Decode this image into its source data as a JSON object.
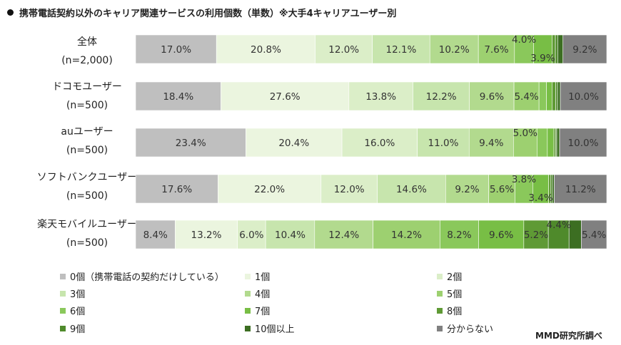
{
  "chart_data": {
    "type": "bar",
    "orientation": "horizontal",
    "stacked": true,
    "title": "携帯電話契約以外のキャリア関連サービスの利用個数（単数）※大手4キャリアユーザー別",
    "source": "MMD研究所調べ",
    "categories": [
      {
        "line1": "全体",
        "line2": "(n=2,000)"
      },
      {
        "line1": "ドコモユーザー",
        "line2": "(n=500)"
      },
      {
        "line1": "auユーザー",
        "line2": "(n=500)"
      },
      {
        "line1": "ソフトバンクユーザー",
        "line2": "(n=500)"
      },
      {
        "line1": "楽天モバイルユーザー",
        "line2": "(n=500)"
      }
    ],
    "series": [
      {
        "name": "0個（携帯電話の契約だけしている）",
        "color": "#bfbfbf",
        "values": [
          17.0,
          18.4,
          23.4,
          17.6,
          8.4
        ]
      },
      {
        "name": "1個",
        "color": "#ebf5df",
        "values": [
          20.8,
          27.6,
          20.4,
          22.0,
          13.2
        ]
      },
      {
        "name": "2個",
        "color": "#dbeec8",
        "values": [
          12.0,
          13.8,
          16.0,
          12.0,
          6.0
        ]
      },
      {
        "name": "3個",
        "color": "#c7e5ad",
        "values": [
          12.1,
          12.2,
          11.0,
          14.6,
          10.4
        ]
      },
      {
        "name": "4個",
        "color": "#b2da8e",
        "values": [
          10.2,
          9.6,
          9.4,
          9.2,
          12.4
        ]
      },
      {
        "name": "5個",
        "color": "#9dd070",
        "values": [
          7.6,
          5.4,
          5.0,
          5.6,
          14.2
        ]
      },
      {
        "name": "6個",
        "color": "#8ac85b",
        "values": [
          4.0,
          1.6,
          2.2,
          3.8,
          8.2
        ]
      },
      {
        "name": "7個",
        "color": "#78be45",
        "values": [
          3.9,
          1.2,
          1.4,
          3.4,
          9.6
        ]
      },
      {
        "name": "8個",
        "color": "#5f9a35",
        "values": [
          0.7,
          0.8,
          0.4,
          0.4,
          5.2
        ]
      },
      {
        "name": "9個",
        "color": "#4f8a2b",
        "values": [
          0.5,
          0.4,
          0.2,
          0.4,
          4.4
        ]
      },
      {
        "name": "10個以上",
        "color": "#3c6e22",
        "values": [
          1.1,
          0.6,
          0.6,
          0.4,
          2.6
        ]
      },
      {
        "name": "分からない",
        "color": "#808080",
        "values": [
          9.2,
          10.0,
          10.0,
          11.2,
          5.4
        ]
      }
    ],
    "data_labels": [
      [
        "17.0%",
        "20.8%",
        "12.0%",
        "12.1%",
        "10.2%",
        "7.6%",
        "4.0%",
        "3.9%",
        "",
        "",
        "",
        "9.2%"
      ],
      [
        "18.4%",
        "27.6%",
        "13.8%",
        "12.2%",
        "9.6%",
        "5.4%",
        "",
        "",
        "",
        "",
        "",
        "10.0%"
      ],
      [
        "23.4%",
        "20.4%",
        "16.0%",
        "11.0%",
        "9.4%",
        "5.0%",
        "",
        "",
        "",
        "",
        "",
        "10.0%"
      ],
      [
        "17.6%",
        "22.0%",
        "12.0%",
        "14.6%",
        "9.2%",
        "5.6%",
        "3.8%",
        "3.4%",
        "",
        "",
        "",
        "11.2%"
      ],
      [
        "8.4%",
        "13.2%",
        "6.0%",
        "10.4%",
        "12.4%",
        "14.2%",
        "8.2%",
        "9.6%",
        "5.2%",
        "4.4%",
        "",
        "5.4%"
      ]
    ],
    "xlim": [
      0,
      100
    ],
    "legend_position": "bottom"
  }
}
